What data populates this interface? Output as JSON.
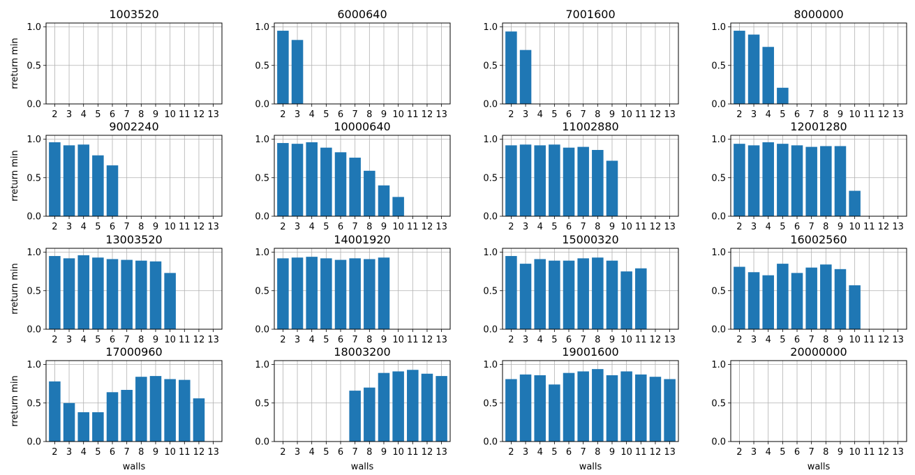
{
  "figure": {
    "xlabel": "walls",
    "ylabel": "rreturn min"
  },
  "chart_data": [
    {
      "type": "bar",
      "title": "1003520",
      "categories": [
        "2",
        "3",
        "4",
        "5",
        "6",
        "7",
        "8",
        "9",
        "10",
        "11",
        "12",
        "13"
      ],
      "values": [
        0,
        0,
        0,
        0,
        0,
        0,
        0,
        0,
        0,
        0,
        0,
        0
      ],
      "ylim": [
        0,
        1.05
      ],
      "yticks": [
        "0.0",
        "0.5",
        "1.0"
      ],
      "grid": true,
      "color": "#1f77b4"
    },
    {
      "type": "bar",
      "title": "6000640",
      "categories": [
        "2",
        "3",
        "4",
        "5",
        "6",
        "7",
        "8",
        "9",
        "10",
        "11",
        "12",
        "13"
      ],
      "values": [
        0.95,
        0.83,
        0,
        0,
        0,
        0,
        0,
        0,
        0,
        0,
        0,
        0
      ],
      "ylim": [
        0,
        1.05
      ],
      "yticks": [
        "0.0",
        "0.5",
        "1.0"
      ],
      "grid": true,
      "color": "#1f77b4"
    },
    {
      "type": "bar",
      "title": "7001600",
      "categories": [
        "2",
        "3",
        "4",
        "5",
        "6",
        "7",
        "8",
        "9",
        "10",
        "11",
        "12",
        "13"
      ],
      "values": [
        0.94,
        0.7,
        0,
        0,
        0,
        0,
        0,
        0,
        0,
        0,
        0,
        0
      ],
      "ylim": [
        0,
        1.05
      ],
      "yticks": [
        "0.0",
        "0.5",
        "1.0"
      ],
      "grid": true,
      "color": "#1f77b4"
    },
    {
      "type": "bar",
      "title": "8000000",
      "categories": [
        "2",
        "3",
        "4",
        "5",
        "6",
        "7",
        "8",
        "9",
        "10",
        "11",
        "12",
        "13"
      ],
      "values": [
        0.95,
        0.9,
        0.74,
        0.21,
        0,
        0,
        0,
        0,
        0,
        0,
        0,
        0
      ],
      "ylim": [
        0,
        1.05
      ],
      "yticks": [
        "0.0",
        "0.5",
        "1.0"
      ],
      "grid": true,
      "color": "#1f77b4"
    },
    {
      "type": "bar",
      "title": "9002240",
      "categories": [
        "2",
        "3",
        "4",
        "5",
        "6",
        "7",
        "8",
        "9",
        "10",
        "11",
        "12",
        "13"
      ],
      "values": [
        0.96,
        0.92,
        0.93,
        0.79,
        0.66,
        0,
        0,
        0,
        0,
        0,
        0,
        0
      ],
      "ylim": [
        0,
        1.05
      ],
      "yticks": [
        "0.0",
        "0.5",
        "1.0"
      ],
      "grid": true,
      "color": "#1f77b4"
    },
    {
      "type": "bar",
      "title": "10000640",
      "categories": [
        "2",
        "3",
        "4",
        "5",
        "6",
        "7",
        "8",
        "9",
        "10",
        "11",
        "12",
        "13"
      ],
      "values": [
        0.95,
        0.94,
        0.96,
        0.89,
        0.83,
        0.76,
        0.59,
        0.4,
        0.25,
        0,
        0,
        0
      ],
      "ylim": [
        0,
        1.05
      ],
      "yticks": [
        "0.0",
        "0.5",
        "1.0"
      ],
      "grid": true,
      "color": "#1f77b4"
    },
    {
      "type": "bar",
      "title": "11002880",
      "categories": [
        "2",
        "3",
        "4",
        "5",
        "6",
        "7",
        "8",
        "9",
        "10",
        "11",
        "12",
        "13"
      ],
      "values": [
        0.92,
        0.93,
        0.92,
        0.93,
        0.89,
        0.9,
        0.86,
        0.72,
        0,
        0,
        0,
        0
      ],
      "ylim": [
        0,
        1.05
      ],
      "yticks": [
        "0.0",
        "0.5",
        "1.0"
      ],
      "grid": true,
      "color": "#1f77b4"
    },
    {
      "type": "bar",
      "title": "12001280",
      "categories": [
        "2",
        "3",
        "4",
        "5",
        "6",
        "7",
        "8",
        "9",
        "10",
        "11",
        "12",
        "13"
      ],
      "values": [
        0.94,
        0.92,
        0.96,
        0.94,
        0.92,
        0.9,
        0.91,
        0.91,
        0.33,
        0,
        0,
        0
      ],
      "ylim": [
        0,
        1.05
      ],
      "yticks": [
        "0.0",
        "0.5",
        "1.0"
      ],
      "grid": true,
      "color": "#1f77b4"
    },
    {
      "type": "bar",
      "title": "13003520",
      "categories": [
        "2",
        "3",
        "4",
        "5",
        "6",
        "7",
        "8",
        "9",
        "10",
        "11",
        "12",
        "13"
      ],
      "values": [
        0.95,
        0.92,
        0.96,
        0.93,
        0.91,
        0.9,
        0.89,
        0.88,
        0.73,
        0,
        0,
        0
      ],
      "ylim": [
        0,
        1.05
      ],
      "yticks": [
        "0.0",
        "0.5",
        "1.0"
      ],
      "grid": true,
      "color": "#1f77b4"
    },
    {
      "type": "bar",
      "title": "14001920",
      "categories": [
        "2",
        "3",
        "4",
        "5",
        "6",
        "7",
        "8",
        "9",
        "10",
        "11",
        "12",
        "13"
      ],
      "values": [
        0.92,
        0.93,
        0.94,
        0.92,
        0.9,
        0.92,
        0.91,
        0.93,
        0,
        0,
        0,
        0
      ],
      "ylim": [
        0,
        1.05
      ],
      "yticks": [
        "0.0",
        "0.5",
        "1.0"
      ],
      "grid": true,
      "color": "#1f77b4"
    },
    {
      "type": "bar",
      "title": "15000320",
      "categories": [
        "2",
        "3",
        "4",
        "5",
        "6",
        "7",
        "8",
        "9",
        "10",
        "11",
        "12",
        "13"
      ],
      "values": [
        0.95,
        0.85,
        0.91,
        0.89,
        0.89,
        0.92,
        0.93,
        0.89,
        0.75,
        0.79,
        0,
        0
      ],
      "ylim": [
        0,
        1.05
      ],
      "yticks": [
        "0.0",
        "0.5",
        "1.0"
      ],
      "grid": true,
      "color": "#1f77b4"
    },
    {
      "type": "bar",
      "title": "16002560",
      "categories": [
        "2",
        "3",
        "4",
        "5",
        "6",
        "7",
        "8",
        "9",
        "10",
        "11",
        "12",
        "13"
      ],
      "values": [
        0.81,
        0.74,
        0.7,
        0.85,
        0.73,
        0.8,
        0.84,
        0.78,
        0.57,
        0,
        0,
        0
      ],
      "ylim": [
        0,
        1.05
      ],
      "yticks": [
        "0.0",
        "0.5",
        "1.0"
      ],
      "grid": true,
      "color": "#1f77b4"
    },
    {
      "type": "bar",
      "title": "17000960",
      "categories": [
        "2",
        "3",
        "4",
        "5",
        "6",
        "7",
        "8",
        "9",
        "10",
        "11",
        "12",
        "13"
      ],
      "values": [
        0.78,
        0.5,
        0.38,
        0.38,
        0.64,
        0.67,
        0.84,
        0.85,
        0.81,
        0.8,
        0.56,
        0
      ],
      "ylim": [
        0,
        1.05
      ],
      "yticks": [
        "0.0",
        "0.5",
        "1.0"
      ],
      "grid": true,
      "color": "#1f77b4"
    },
    {
      "type": "bar",
      "title": "18003200",
      "categories": [
        "2",
        "3",
        "4",
        "5",
        "6",
        "7",
        "8",
        "9",
        "10",
        "11",
        "12",
        "13"
      ],
      "values": [
        0,
        0,
        0,
        0,
        0,
        0.66,
        0.7,
        0.89,
        0.91,
        0.93,
        0.88,
        0.85
      ],
      "ylim": [
        0,
        1.05
      ],
      "yticks": [
        "0.0",
        "0.5",
        "1.0"
      ],
      "grid": true,
      "color": "#1f77b4"
    },
    {
      "type": "bar",
      "title": "19001600",
      "categories": [
        "2",
        "3",
        "4",
        "5",
        "6",
        "7",
        "8",
        "9",
        "10",
        "11",
        "12",
        "13"
      ],
      "values": [
        0.81,
        0.87,
        0.86,
        0.74,
        0.89,
        0.91,
        0.94,
        0.86,
        0.91,
        0.87,
        0.84,
        0.81
      ],
      "ylim": [
        0,
        1.05
      ],
      "yticks": [
        "0.0",
        "0.5",
        "1.0"
      ],
      "grid": true,
      "color": "#1f77b4"
    },
    {
      "type": "bar",
      "title": "20000000",
      "categories": [
        "2",
        "3",
        "4",
        "5",
        "6",
        "7",
        "8",
        "9",
        "10",
        "11",
        "12",
        "13"
      ],
      "values": [
        0,
        0,
        0,
        0,
        0,
        0,
        0,
        0,
        0,
        0,
        0,
        0
      ],
      "ylim": [
        0,
        1.05
      ],
      "yticks": [
        "0.0",
        "0.5",
        "1.0"
      ],
      "grid": true,
      "color": "#1f77b4"
    }
  ]
}
